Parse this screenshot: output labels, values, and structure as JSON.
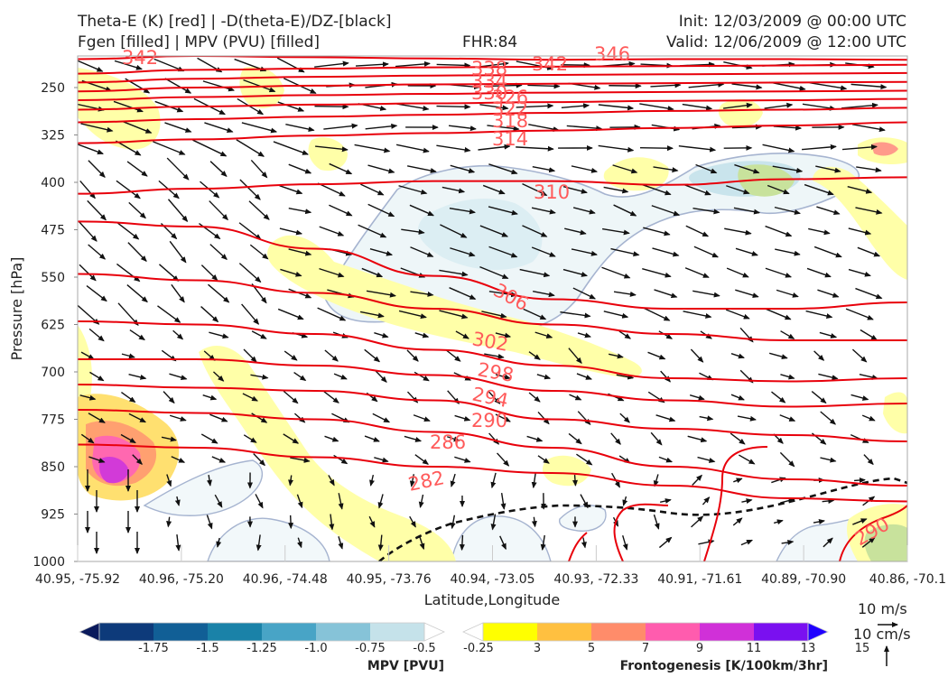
{
  "header": {
    "title_line1": "Theta-E (K) [red] | -D(theta-E)/DZ-[black]",
    "title_line2": "Fgen [filled] | MPV (PVU) [filled]",
    "fhr": "FHR:84",
    "init": "Init: 12/03/2009 @ 00:00 UTC",
    "valid": "Valid: 12/06/2009 @ 12:00 UTC"
  },
  "chart_data": {
    "type": "cross-section",
    "ylabel": "Pressure [hPa]",
    "xlabel": "Latitude,Longitude",
    "y_ticks": [
      250,
      325,
      400,
      475,
      550,
      625,
      700,
      775,
      850,
      925,
      1000
    ],
    "x_ticks": [
      "40.95, -75.92",
      "40.96, -75.20",
      "40.96, -74.48",
      "40.95, -73.76",
      "40.94, -73.05",
      "40.93, -72.33",
      "40.91, -71.61",
      "40.89, -70.90",
      "40.86, -70.1"
    ],
    "ylim": [
      200,
      1000
    ],
    "theta_e_color": "#e8000b",
    "theta_e_series": [
      {
        "label": "342",
        "pressure": [
          205,
          200,
          202,
          204,
          206,
          205,
          205,
          206
        ]
      },
      {
        "label": "338",
        "pressure": [
          228,
          222,
          220,
          218,
          217,
          216,
          215,
          214
        ]
      },
      {
        "label": "334",
        "pressure": [
          242,
          236,
          233,
          231,
          230,
          229,
          228,
          227
        ]
      },
      {
        "label": "330",
        "pressure": [
          256,
          250,
          247,
          245,
          244,
          243,
          242,
          241
        ]
      },
      {
        "label": "326",
        "pressure": [
          270,
          265,
          262,
          260,
          258,
          257,
          256,
          255
        ]
      },
      {
        "label": "322",
        "pressure": [
          285,
          280,
          277,
          275,
          273,
          271,
          270,
          268
        ]
      },
      {
        "label": "318",
        "pressure": [
          305,
          300,
          296,
          293,
          290,
          287,
          285,
          282
        ]
      },
      {
        "label": "314",
        "pressure": [
          338,
          332,
          326,
          322,
          318,
          314,
          310,
          305
        ]
      },
      {
        "label": "310",
        "pressure": [
          418,
          410,
          403,
          398,
          398,
          404,
          395,
          392
        ]
      },
      {
        "label": "306",
        "pressure": [
          462,
          470,
          505,
          548,
          585,
          600,
          600,
          590
        ]
      },
      {
        "label": "302",
        "pressure": [
          545,
          555,
          575,
          600,
          625,
          640,
          650,
          650
        ]
      },
      {
        "label": "298",
        "pressure": [
          620,
          625,
          640,
          665,
          690,
          710,
          715,
          710
        ]
      },
      {
        "label": "294",
        "pressure": [
          680,
          680,
          690,
          705,
          730,
          745,
          755,
          750
        ]
      },
      {
        "label": "290",
        "pressure": [
          720,
          725,
          730,
          745,
          775,
          790,
          800,
          810
        ]
      },
      {
        "label": "286",
        "pressure": [
          760,
          765,
          775,
          795,
          820,
          850,
          870,
          880
        ]
      },
      {
        "label": "282",
        "pressure": [
          815,
          820,
          835,
          850,
          860,
          880,
          900,
          905
        ]
      }
    ],
    "contour_labels": [
      "342",
      "338",
      "334",
      "330",
      "326",
      "322",
      "318",
      "314",
      "310",
      "306",
      "302",
      "298",
      "294",
      "290",
      "286",
      "282",
      "346",
      "290"
    ],
    "mpv_colorbar": {
      "title": "MPV [PVU]",
      "ticks": [
        "-1.75",
        "-1.5",
        "-1.25",
        "-1.0",
        "-0.75",
        "-0.5",
        "-0.25"
      ],
      "colors": [
        "#0a1a5c",
        "#0d3a7a",
        "#115f96",
        "#1a82a8",
        "#48a4c6",
        "#86c3d8",
        "#c5e2ea",
        "#ffffff"
      ]
    },
    "fgen_colorbar": {
      "title": "Frontogenesis [K/100km/3hr]",
      "ticks": [
        "3",
        "5",
        "7",
        "9",
        "11",
        "13",
        "15"
      ],
      "colors": [
        "#ffffff",
        "#ffff00",
        "#ffc040",
        "#ff8c6a",
        "#ff5cae",
        "#d030d8",
        "#7a10f0",
        "#2000ff"
      ]
    },
    "vector_key": {
      "horizontal": "10 m/s",
      "vertical": "10 cm/s"
    }
  }
}
